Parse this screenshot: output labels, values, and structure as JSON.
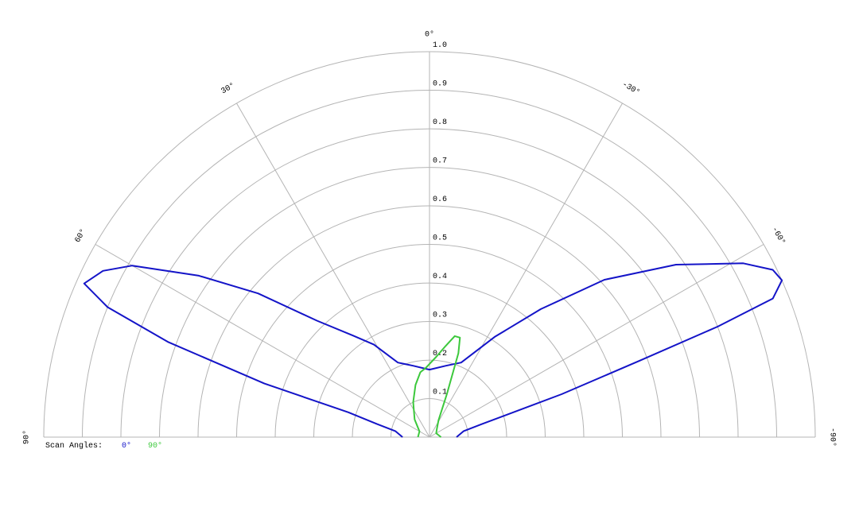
{
  "chart_data": {
    "type": "polar",
    "rlim": [
      0,
      1
    ],
    "rticks": [
      0.1,
      0.2,
      0.3,
      0.4,
      0.5,
      0.6,
      0.7,
      0.8,
      0.9,
      {
        "value": 1,
        "label": "1.0"
      }
    ],
    "angle_ticks": [
      {
        "value": 0,
        "label": "0°"
      },
      {
        "value": 30,
        "label": "30°"
      },
      {
        "value": -30,
        "label": "-30°"
      },
      {
        "value": 60,
        "label": "60°"
      },
      {
        "value": -60,
        "label": "-60°"
      },
      {
        "value": 90,
        "label": "90°"
      },
      {
        "value": -90,
        "label": "-90°"
      }
    ],
    "legend_title": "Scan Angles:",
    "grid": true,
    "series": [
      {
        "name": "0°",
        "color": "#1414c8",
        "angles": [
          90,
          80,
          76,
          73,
          72,
          70,
          68,
          66,
          63,
          60,
          55,
          50,
          44,
          37,
          31,
          23,
          13,
          0,
          -13,
          -23,
          -33,
          -41,
          -48,
          -55,
          -61,
          -64,
          -66,
          -68,
          -69,
          -70,
          -72,
          -76,
          -80,
          -90
        ],
        "values": [
          0.07,
          0.09,
          0.14,
          0.22,
          0.45,
          0.72,
          0.9,
          0.98,
          0.95,
          0.89,
          0.73,
          0.58,
          0.42,
          0.33,
          0.28,
          0.21,
          0.19,
          0.175,
          0.19,
          0.21,
          0.31,
          0.44,
          0.61,
          0.78,
          0.93,
          0.99,
          1.0,
          0.96,
          0.8,
          0.58,
          0.36,
          0.14,
          0.09,
          0.07
        ]
      },
      {
        "name": "90°",
        "color": "#3cc83c",
        "angles": [
          90,
          60,
          40,
          25,
          15,
          8,
          3,
          0,
          -5,
          -10,
          -14,
          -17,
          -19,
          -22,
          -28,
          -40,
          -60,
          -90
        ],
        "values": [
          0.03,
          0.03,
          0.06,
          0.1,
          0.14,
          0.17,
          0.18,
          0.19,
          0.21,
          0.24,
          0.27,
          0.27,
          0.23,
          0.12,
          0.05,
          0.03,
          0.02,
          0.03
        ]
      }
    ]
  }
}
